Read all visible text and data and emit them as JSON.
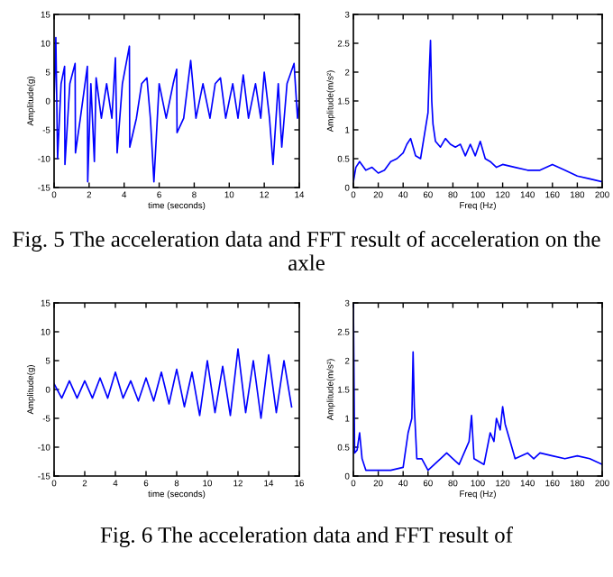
{
  "chart_data": [
    {
      "type": "line",
      "xlabel": "time (seconds)",
      "ylabel": "Amplitude(g)",
      "xlim": [
        0,
        14
      ],
      "xticks": [
        0,
        2,
        4,
        6,
        8,
        10,
        12,
        14
      ],
      "ylim": [
        -15,
        15
      ],
      "yticks": [
        -15,
        -10,
        -5,
        0,
        5,
        10,
        15
      ],
      "series": [
        {
          "color": "#0000ff",
          "x": [
            0,
            0.1,
            0.2,
            0.4,
            0.6,
            0.62,
            0.9,
            1.2,
            1.22,
            1.5,
            1.9,
            1.92,
            2.1,
            2.3,
            2.4,
            2.7,
            3.0,
            3.3,
            3.5,
            3.6,
            3.9,
            4.3,
            4.32,
            4.7,
            5.0,
            5.3,
            5.5,
            5.7,
            6.0,
            6.4,
            6.8,
            7.0,
            7.02,
            7.4,
            7.8,
            8.1,
            8.5,
            8.9,
            9.2,
            9.5,
            9.8,
            10.2,
            10.5,
            10.8,
            11.1,
            11.5,
            11.8,
            12.0,
            12.3,
            12.5,
            12.8,
            13.0,
            13.3,
            13.7,
            13.9,
            14.0
          ],
          "values": [
            0,
            11,
            -10,
            3,
            6,
            -11,
            3,
            6.5,
            -9,
            -3,
            6,
            -14,
            3,
            -10.5,
            4,
            -3,
            3,
            -3,
            7.5,
            -9,
            3,
            9.5,
            -8,
            -3,
            3,
            4,
            -3,
            -14,
            3,
            -3,
            3,
            5.5,
            -5.5,
            -3,
            7,
            -3,
            3,
            -3,
            3,
            4,
            -3,
            3,
            -3,
            4.5,
            -3,
            3,
            -3,
            5,
            -3,
            -11,
            3,
            -8,
            3,
            6.5,
            -3,
            0
          ]
        }
      ],
      "annotations": [
        "Fig. 5 The acceleration data and FFT result of acceleration on the axle"
      ]
    },
    {
      "type": "line",
      "xlabel": "Freq (Hz)",
      "ylabel": "Amplitude(m/s²)",
      "xlim": [
        0,
        200
      ],
      "xticks": [
        0,
        20,
        40,
        60,
        80,
        100,
        120,
        140,
        160,
        180,
        200
      ],
      "ylim": [
        0,
        3
      ],
      "yticks": [
        0,
        0.5,
        1,
        1.5,
        2,
        2.5,
        3
      ],
      "series": [
        {
          "color": "#0000ff",
          "x": [
            0,
            2,
            5,
            10,
            15,
            20,
            25,
            30,
            35,
            40,
            43,
            46,
            50,
            54,
            57,
            60,
            61,
            62,
            63,
            64,
            66,
            70,
            74,
            78,
            82,
            86,
            90,
            94,
            98,
            102,
            106,
            110,
            115,
            120,
            130,
            140,
            150,
            160,
            170,
            180,
            190,
            200
          ],
          "values": [
            0.1,
            0.35,
            0.45,
            0.3,
            0.35,
            0.25,
            0.3,
            0.45,
            0.5,
            0.6,
            0.75,
            0.85,
            0.55,
            0.5,
            0.9,
            1.3,
            2.0,
            2.55,
            1.5,
            1.1,
            0.8,
            0.7,
            0.85,
            0.75,
            0.7,
            0.75,
            0.55,
            0.75,
            0.55,
            0.8,
            0.5,
            0.45,
            0.35,
            0.4,
            0.35,
            0.3,
            0.3,
            0.4,
            0.3,
            0.2,
            0.15,
            0.1
          ]
        }
      ]
    },
    {
      "type": "line",
      "xlabel": "time (seconds)",
      "ylabel": "Amplitude(g)",
      "xlim": [
        0,
        16
      ],
      "xticks": [
        0,
        2,
        4,
        6,
        8,
        10,
        12,
        14,
        16
      ],
      "ylim": [
        -15,
        15
      ],
      "yticks": [
        -15,
        -10,
        -5,
        0,
        5,
        10,
        15
      ],
      "series": [
        {
          "color": "#0000ff",
          "x": [
            0,
            0.5,
            1,
            1.5,
            2,
            2.5,
            3,
            3.5,
            4,
            4.5,
            5,
            5.5,
            6,
            6.5,
            7,
            7.5,
            8,
            8.5,
            9,
            9.5,
            10,
            10.5,
            11,
            11.5,
            12,
            12.5,
            13,
            13.5,
            14,
            14.5,
            15,
            15.5
          ],
          "values": [
            1,
            -1.5,
            1.5,
            -1.5,
            1.5,
            -1.5,
            2,
            -1.5,
            3,
            -1.5,
            1.5,
            -2,
            2,
            -2,
            3,
            -2.5,
            3.5,
            -3,
            3,
            -4.5,
            5,
            -4,
            4,
            -4.5,
            7,
            -4,
            5,
            -5,
            6,
            -4,
            5,
            -3
          ]
        }
      ],
      "annotations": [
        "Fig. 6 The acceleration data and FFT result of"
      ]
    },
    {
      "type": "line",
      "xlabel": "Freq (Hz)",
      "ylabel": "Amplitude(m/s²)",
      "xlim": [
        0,
        200
      ],
      "xticks": [
        0,
        20,
        40,
        60,
        80,
        100,
        120,
        140,
        160,
        180,
        200
      ],
      "ylim": [
        0,
        3
      ],
      "yticks": [
        0,
        0.5,
        1,
        1.5,
        2,
        2.5,
        3
      ],
      "series": [
        {
          "color": "#0000ff",
          "x": [
            0,
            1,
            3,
            5,
            7,
            10,
            20,
            30,
            40,
            44,
            47,
            48,
            49,
            51,
            55,
            60,
            70,
            75,
            80,
            85,
            93,
            95,
            97,
            105,
            110,
            113,
            115,
            118,
            120,
            122,
            126,
            130,
            140,
            145,
            150,
            160,
            170,
            180,
            190,
            200
          ],
          "values": [
            3,
            0.4,
            0.45,
            0.75,
            0.3,
            0.1,
            0.1,
            0.1,
            0.15,
            0.75,
            1.0,
            2.15,
            1.2,
            0.3,
            0.3,
            0.1,
            0.3,
            0.4,
            0.3,
            0.2,
            0.6,
            1.05,
            0.3,
            0.2,
            0.75,
            0.6,
            1.0,
            0.8,
            1.2,
            0.9,
            0.6,
            0.3,
            0.4,
            0.3,
            0.4,
            0.35,
            0.3,
            0.35,
            0.3,
            0.2
          ]
        }
      ]
    }
  ]
}
